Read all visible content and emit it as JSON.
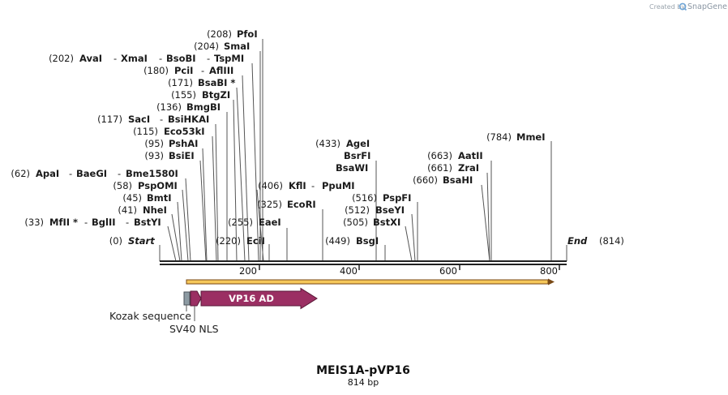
{
  "credit": {
    "prefix": "Created by",
    "brand": "SnapGene"
  },
  "title": "MEIS1A-pVP16",
  "subtitle": "814 bp",
  "sequence_length": 814,
  "start_label": {
    "pos": "(0)",
    "name": "Start"
  },
  "end_label": {
    "name": "End",
    "pos": "(814)"
  },
  "ruler_ticks": [
    "200",
    "400",
    "600",
    "800"
  ],
  "sites": [
    {
      "pos": "(208)",
      "names": [
        "PfoI"
      ]
    },
    {
      "pos": "(204)",
      "names": [
        "SmaI"
      ]
    },
    {
      "pos": "(202)",
      "names": [
        "AvaI",
        "XmaI",
        "BsoBI",
        "TspMI"
      ]
    },
    {
      "pos": "(180)",
      "names": [
        "PciI",
        "AflIII"
      ]
    },
    {
      "pos": "(171)",
      "names": [
        "BsaBI *"
      ]
    },
    {
      "pos": "(155)",
      "names": [
        "BtgZI"
      ]
    },
    {
      "pos": "(136)",
      "names": [
        "BmgBI"
      ]
    },
    {
      "pos": "(117)",
      "names": [
        "SacI",
        "BsiHKAI"
      ]
    },
    {
      "pos": "(115)",
      "names": [
        "Eco53kI"
      ]
    },
    {
      "pos": "(95)",
      "names": [
        "PshAI"
      ]
    },
    {
      "pos": "(93)",
      "names": [
        "BsiEI"
      ]
    },
    {
      "pos": "(62)",
      "names": [
        "ApaI",
        "BaeGI",
        "Bme1580I"
      ]
    },
    {
      "pos": "(58)",
      "names": [
        "PspOMI"
      ]
    },
    {
      "pos": "(45)",
      "names": [
        "BmtI"
      ]
    },
    {
      "pos": "(41)",
      "names": [
        "NheI"
      ]
    },
    {
      "pos": "(33)",
      "names": [
        "MfII *",
        "BglII",
        "BstYI"
      ]
    },
    {
      "pos": "(255)",
      "names": [
        "EaeI"
      ]
    },
    {
      "pos": "(220)",
      "names": [
        "EciI"
      ]
    },
    {
      "pos": "(406)",
      "names": [
        "KflI",
        "PpuMI"
      ]
    },
    {
      "pos": "(325)",
      "names": [
        "EcoRI"
      ]
    },
    {
      "pos": "(433)",
      "names": [
        "AgeI"
      ]
    },
    {
      "pos": "",
      "names": [
        "BsrFI"
      ]
    },
    {
      "pos": "",
      "names": [
        "BsaWI"
      ]
    },
    {
      "pos": "(516)",
      "names": [
        "PspFI"
      ]
    },
    {
      "pos": "(512)",
      "names": [
        "BseYI"
      ]
    },
    {
      "pos": "(505)",
      "names": [
        "BstXI"
      ]
    },
    {
      "pos": "(449)",
      "names": [
        "BsgI"
      ]
    },
    {
      "pos": "(784)",
      "names": [
        "MmeI"
      ]
    },
    {
      "pos": "(663)",
      "names": [
        "AatII"
      ]
    },
    {
      "pos": "(661)",
      "names": [
        "ZraI"
      ]
    },
    {
      "pos": "(660)",
      "names": [
        "BsaHI"
      ]
    }
  ],
  "features": {
    "vp16": "VP16 AD",
    "kozak": "Kozak sequence",
    "sv40": "SV40 NLS"
  },
  "colors": {
    "orf_fill": "#f5c75a",
    "orf_stroke": "#7a4a16",
    "vp16": "#9b2f63",
    "kozak": "#8c9aa2",
    "line": "#555555"
  }
}
